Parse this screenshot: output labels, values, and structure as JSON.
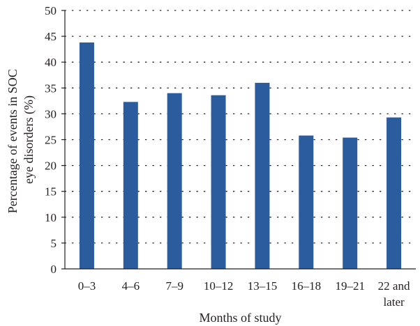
{
  "chart_data": {
    "type": "bar",
    "categories": [
      [
        "0–3"
      ],
      [
        "4–6"
      ],
      [
        "7–9"
      ],
      [
        "10–12"
      ],
      [
        "13–15"
      ],
      [
        "16–18"
      ],
      [
        "19–21"
      ],
      [
        "22 and",
        "later"
      ]
    ],
    "values": [
      43.8,
      32.3,
      34.0,
      33.6,
      36.0,
      25.8,
      25.4,
      29.3
    ],
    "title": "",
    "xlabel": "Months of study",
    "ylabel_lines": [
      "Percentage of events in SOC",
      "eye disorders (%)"
    ],
    "ylim": [
      0,
      50
    ],
    "yticks": [
      0,
      5,
      10,
      15,
      20,
      25,
      30,
      35,
      40,
      45,
      50
    ],
    "grid": "dotted horizontal",
    "bar_color": "#2b5c9e"
  }
}
